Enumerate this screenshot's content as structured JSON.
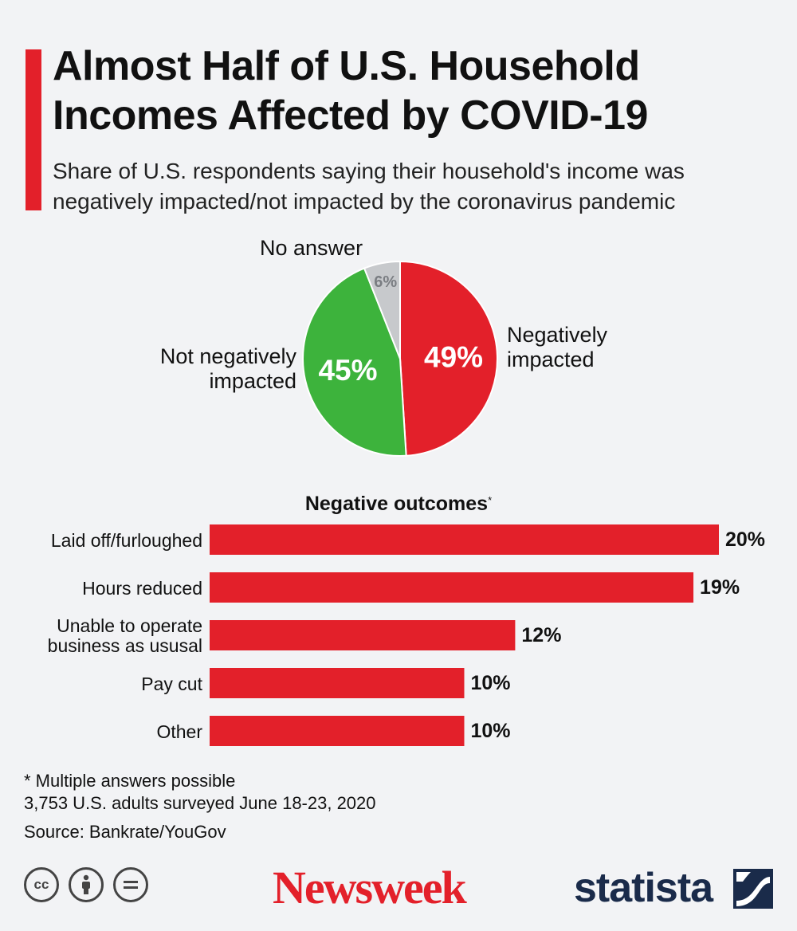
{
  "header": {
    "title_line1": "Almost Half of U.S. Household",
    "title_line2": "Incomes Affected by COVID-19",
    "subtitle_line1": "Share of U.S. respondents saying their household's income was",
    "subtitle_line2": "negatively impacted/not impacted by the coronavirus pandemic"
  },
  "pie_labels": {
    "no_answer": "No answer",
    "not_negative_line1": "Not negatively",
    "not_negative_line2": "impacted",
    "negative_line1": "Negatively",
    "negative_line2": "impacted"
  },
  "bars_section": {
    "title": "Negative outcomes",
    "title_mark": "*"
  },
  "notes": {
    "line1": "* Multiple answers possible",
    "line2": "3,753 U.S. adults surveyed June 18-23, 2020",
    "source": "Source: Bankrate/YouGov"
  },
  "license_icons": [
    "cc-icon",
    "by-person-icon",
    "nd-equals-icon"
  ],
  "brands": {
    "newsweek": "Newsweek",
    "statista": "statista"
  },
  "colors": {
    "accent_red": "#e3202a",
    "green": "#3db33c",
    "grey": "#c7c9cc",
    "navy": "#1a2b4a",
    "background": "#f2f3f5"
  },
  "chart_data": [
    {
      "type": "pie",
      "slices": [
        {
          "label": "Negatively impacted",
          "value": 49,
          "display": "49%",
          "color": "#e3202a"
        },
        {
          "label": "Not negatively impacted",
          "value": 45,
          "display": "45%",
          "color": "#3db33c"
        },
        {
          "label": "No answer",
          "value": 6,
          "display": "6%",
          "color": "#c7c9cc"
        }
      ]
    },
    {
      "type": "bar",
      "orientation": "horizontal",
      "title": "Negative outcomes*",
      "categories": [
        [
          "Laid off/furloughed"
        ],
        [
          "Hours reduced"
        ],
        [
          "Unable to operate",
          "business as ususal"
        ],
        [
          "Pay cut"
        ],
        [
          "Other"
        ]
      ],
      "values": [
        20,
        19,
        12,
        10,
        10
      ],
      "value_labels": [
        "20%",
        "19%",
        "12%",
        "10%",
        "10%"
      ],
      "color": "#e3202a"
    }
  ]
}
